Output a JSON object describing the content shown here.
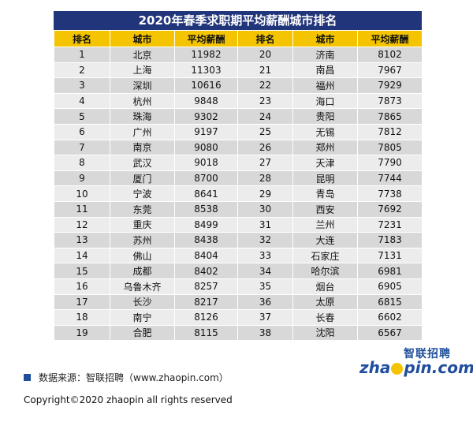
{
  "title": "2020年春季求职期平均薪酬城市排名",
  "headers": [
    "排名",
    "城市",
    "平均薪酬",
    "排名",
    "城市",
    "平均薪酬"
  ],
  "rows": [
    [
      "1",
      "北京",
      "11982",
      "20",
      "济南",
      "8102"
    ],
    [
      "2",
      "上海",
      "11303",
      "21",
      "南昌",
      "7967"
    ],
    [
      "3",
      "深圳",
      "10616",
      "22",
      "福州",
      "7929"
    ],
    [
      "4",
      "杭州",
      "9848",
      "23",
      "海口",
      "7873"
    ],
    [
      "5",
      "珠海",
      "9302",
      "24",
      "贵阳",
      "7865"
    ],
    [
      "6",
      "广州",
      "9197",
      "25",
      "无锡",
      "7812"
    ],
    [
      "7",
      "南京",
      "9080",
      "26",
      "郑州",
      "7805"
    ],
    [
      "8",
      "武汉",
      "9018",
      "27",
      "天津",
      "7790"
    ],
    [
      "9",
      "厦门",
      "8700",
      "28",
      "昆明",
      "7744"
    ],
    [
      "10",
      "宁波",
      "8641",
      "29",
      "青岛",
      "7738"
    ],
    [
      "11",
      "东莞",
      "8538",
      "30",
      "西安",
      "7692"
    ],
    [
      "12",
      "重庆",
      "8499",
      "31",
      "兰州",
      "7231"
    ],
    [
      "13",
      "苏州",
      "8438",
      "32",
      "大连",
      "7183"
    ],
    [
      "14",
      "佛山",
      "8404",
      "33",
      "石家庄",
      "7131"
    ],
    [
      "15",
      "成都",
      "8402",
      "34",
      "哈尔滨",
      "6981"
    ],
    [
      "16",
      "乌鲁木齐",
      "8257",
      "35",
      "烟台",
      "6905"
    ],
    [
      "17",
      "长沙",
      "8217",
      "36",
      "太原",
      "6815"
    ],
    [
      "18",
      "南宁",
      "8126",
      "37",
      "长春",
      "6602"
    ],
    [
      "19",
      "合肥",
      "8115",
      "38",
      "沈阳",
      "6567"
    ]
  ],
  "source": "数据来源：智联招聘（www.zhaopin.com）",
  "copyright": "Copyright©2020 zhaopin all rights reserved",
  "logo": {
    "cn": "智联招聘",
    "en_prefix": "zha",
    "en_suffix": "pin.com"
  },
  "colors": {
    "title_bg": "#21357a",
    "header_bg": "#f5c400",
    "row_dark": "#d8d8d8",
    "row_light": "#ececec",
    "brand_blue": "#1f4e9c"
  }
}
